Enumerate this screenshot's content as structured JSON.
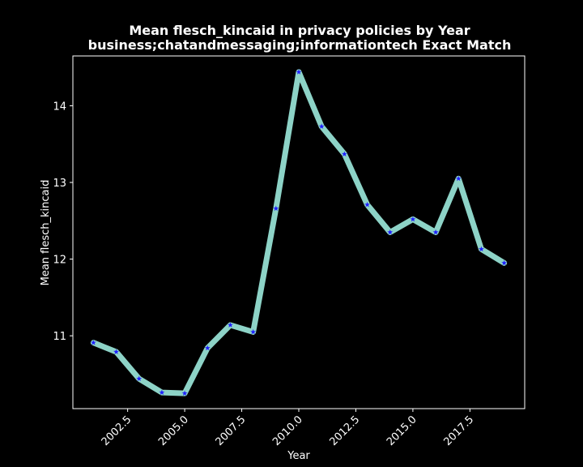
{
  "chart_data": {
    "type": "line",
    "title": "Mean flesch_kincaid in privacy policies by Year",
    "subtitle": "business;chatandmessaging;informationtech Exact Match",
    "xlabel": "Year",
    "ylabel": "Mean flesch_kincaid",
    "xlim": [
      2000.1,
      2019.9
    ],
    "ylim": [
      10.05,
      14.65
    ],
    "xticks": [
      2002.5,
      2005.0,
      2007.5,
      2010.0,
      2012.5,
      2015.0,
      2017.5
    ],
    "xtick_labels": [
      "2002.5",
      "2005.0",
      "2007.5",
      "2010.0",
      "2012.5",
      "2015.0",
      "2017.5"
    ],
    "yticks": [
      11,
      12,
      13,
      14
    ],
    "ytick_labels": [
      "11",
      "12",
      "13",
      "14"
    ],
    "grid": false,
    "line_color": "#8dd3c7",
    "marker_color": "#1f1fff",
    "background": "#000000",
    "series": [
      {
        "x": [
          2001,
          2002,
          2003,
          2004,
          2005,
          2006,
          2007,
          2008,
          2009,
          2010,
          2011,
          2012,
          2013,
          2014,
          2015,
          2016,
          2017,
          2018,
          2019
        ],
        "values": [
          10.91,
          10.79,
          10.44,
          10.26,
          10.25,
          10.84,
          11.14,
          11.05,
          12.66,
          14.44,
          13.73,
          13.37,
          12.71,
          12.35,
          12.52,
          12.35,
          13.05,
          12.13,
          11.95
        ]
      }
    ]
  }
}
